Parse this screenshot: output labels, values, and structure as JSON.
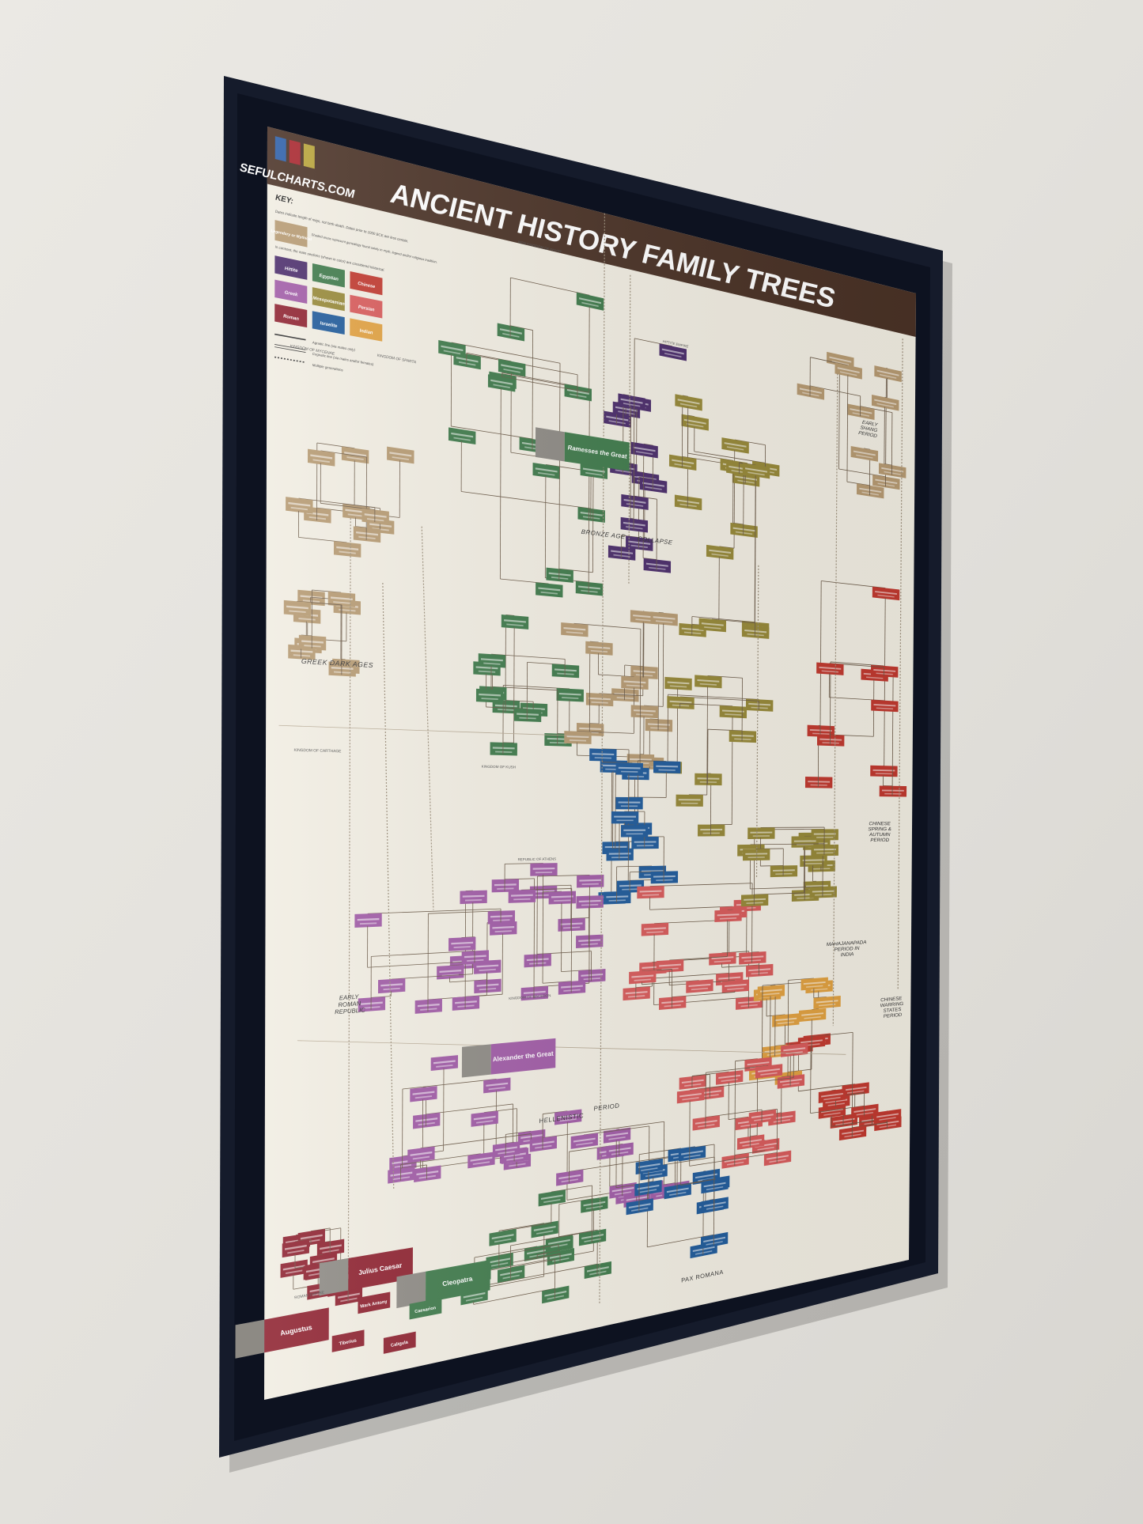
{
  "poster": {
    "logo_text": "SEFULCHARTS.COM",
    "logo_colors": [
      "#2d5fa8",
      "#a8262e",
      "#b8a43a"
    ],
    "title": "ANCIENT HISTORY FAMILY TREES",
    "header_color": "#4a3226",
    "paper_color": "#f1ede2",
    "frame_color": "#151b2b"
  },
  "key": {
    "heading": "KEY:",
    "note_dates": "Dates indicate length of reign, not birth-death. Dates prior to 1000 BCE are less certain.",
    "legendary_label": "Legendary or Mythical",
    "legendary_note": "Shaded areas represent genealogy found solely in myth, legend and/or religious tradition.",
    "historical_note": "In contrast, the main sections (shown in color) are considered historical.",
    "categories": [
      {
        "label": "Hittite",
        "color": "#4b2d6b"
      },
      {
        "label": "Egyptian",
        "color": "#3f7a4b"
      },
      {
        "label": "Chinese",
        "color": "#c0392f"
      },
      {
        "label": "Greek",
        "color": "#a05ba6"
      },
      {
        "label": "Mesopotamian",
        "color": "#968838"
      },
      {
        "label": "Persian",
        "color": "#d75a5a"
      },
      {
        "label": "Roman",
        "color": "#8e2230"
      },
      {
        "label": "Israelite",
        "color": "#1f5a9a"
      },
      {
        "label": "Indian",
        "color": "#e0a040"
      }
    ],
    "legendary_color": "#b69a72",
    "lines": [
      {
        "style": "solid",
        "label": "Agnatic line (via males only)"
      },
      {
        "style": "double",
        "label": "Cognatic line (via males and/or females)"
      },
      {
        "style": "dotted",
        "label": "Multiple generations"
      }
    ]
  },
  "periods": [
    "BRONZE AGE",
    "COLLAPSE",
    "GREEK DARK AGES",
    "EARLY ROMAN REPUBLIC",
    "HELLENISTIC",
    "PERIOD",
    "PAX ROMANA",
    "EARLY SHANG PERIOD",
    "CHINESE SPRING & AUTUMN PERIOD",
    "MAHAJANAPADA PERIOD IN INDIA",
    "CHINESE WARRING STATES PERIOD"
  ],
  "kingdoms": [
    "NEW KINGDOM OF EGYPT",
    "KINGDOM OF MYCENAE",
    "KINGDOM OF SPARTA",
    "HITTITE EMPIRE",
    "KINGDOM OF CARTHAGE",
    "KINGDOM OF KUSH",
    "REPUBLIC OF ATHENS",
    "KINGDOM OF MACEDON",
    "ROMAN EMPIRE",
    "BRONZE AGE COLLAPSE"
  ],
  "featured_rulers": [
    {
      "name": "Ramesses the Great",
      "group": "Egyptian"
    },
    {
      "name": "Alexander the Great",
      "group": "Greek"
    },
    {
      "name": "Julius Caesar",
      "group": "Roman"
    },
    {
      "name": "Augustus",
      "group": "Roman"
    },
    {
      "name": "Cleopatra",
      "group": "Egyptian"
    },
    {
      "name": "Mark Antony",
      "group": "Roman"
    },
    {
      "name": "Tiberius",
      "group": "Roman"
    },
    {
      "name": "Caligula",
      "group": "Roman"
    },
    {
      "name": "Caesarion",
      "group": "Egyptian"
    }
  ]
}
